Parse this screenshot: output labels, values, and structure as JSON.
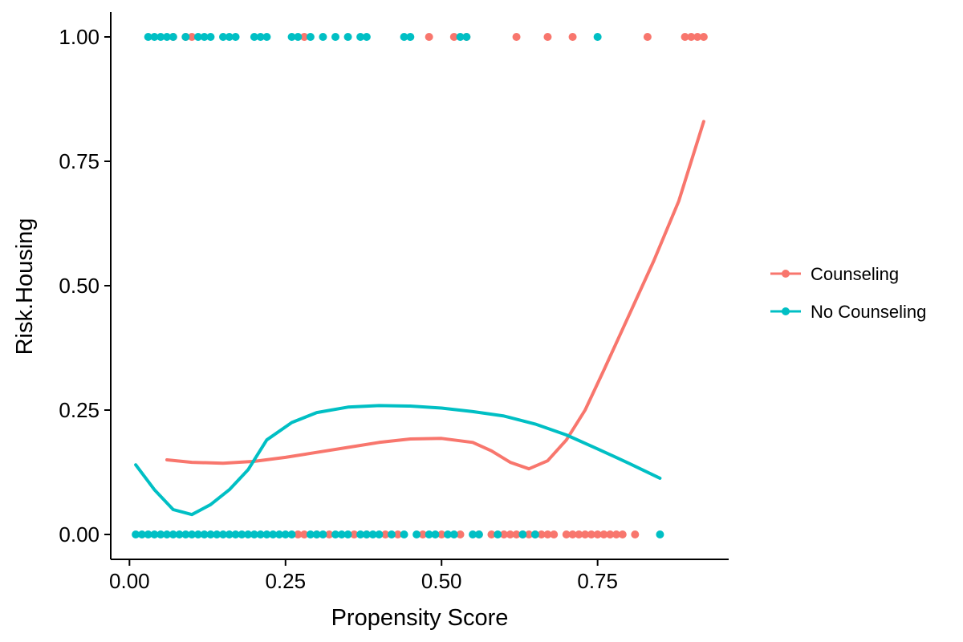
{
  "chart_data": {
    "type": "scatter",
    "xlabel": "Propensity Score",
    "ylabel": "Risk.Housing",
    "xlim": [
      -0.03,
      0.96
    ],
    "ylim": [
      -0.05,
      1.05
    ],
    "xticks": [
      0.0,
      0.25,
      0.5,
      0.75
    ],
    "xtick_labels": [
      "0.00",
      "0.25",
      "0.50",
      "0.75"
    ],
    "yticks": [
      0.0,
      0.25,
      0.5,
      0.75,
      1.0
    ],
    "ytick_labels": [
      "0.00",
      "0.25",
      "0.50",
      "0.75",
      "1.00"
    ],
    "grid": false,
    "legend_position": "right",
    "series": [
      {
        "name": "Counseling",
        "color": "#F8766D",
        "points_y1": [
          0.07,
          0.09,
          0.1,
          0.28,
          0.48,
          0.52,
          0.54,
          0.62,
          0.67,
          0.71,
          0.83,
          0.89,
          0.9,
          0.91,
          0.92
        ],
        "points_y0": [
          0.27,
          0.28,
          0.3,
          0.32,
          0.36,
          0.38,
          0.41,
          0.43,
          0.47,
          0.5,
          0.53,
          0.56,
          0.58,
          0.6,
          0.61,
          0.62,
          0.63,
          0.64,
          0.65,
          0.66,
          0.67,
          0.68,
          0.7,
          0.71,
          0.72,
          0.73,
          0.74,
          0.75,
          0.76,
          0.77,
          0.78,
          0.79,
          0.81
        ],
        "smooth": [
          [
            0.06,
            0.15
          ],
          [
            0.1,
            0.145
          ],
          [
            0.15,
            0.143
          ],
          [
            0.2,
            0.147
          ],
          [
            0.25,
            0.155
          ],
          [
            0.3,
            0.165
          ],
          [
            0.35,
            0.175
          ],
          [
            0.4,
            0.185
          ],
          [
            0.45,
            0.192
          ],
          [
            0.5,
            0.193
          ],
          [
            0.55,
            0.185
          ],
          [
            0.58,
            0.168
          ],
          [
            0.61,
            0.145
          ],
          [
            0.64,
            0.132
          ],
          [
            0.67,
            0.148
          ],
          [
            0.7,
            0.19
          ],
          [
            0.73,
            0.25
          ],
          [
            0.76,
            0.33
          ],
          [
            0.8,
            0.44
          ],
          [
            0.84,
            0.55
          ],
          [
            0.88,
            0.67
          ],
          [
            0.92,
            0.83
          ]
        ]
      },
      {
        "name": "No Counseling",
        "color": "#00BFC4",
        "points_y1": [
          0.03,
          0.04,
          0.05,
          0.06,
          0.07,
          0.09,
          0.11,
          0.12,
          0.13,
          0.15,
          0.16,
          0.17,
          0.2,
          0.21,
          0.22,
          0.26,
          0.27,
          0.29,
          0.31,
          0.33,
          0.35,
          0.37,
          0.38,
          0.44,
          0.45,
          0.53,
          0.54,
          0.75
        ],
        "points_y0": [
          0.01,
          0.02,
          0.03,
          0.04,
          0.05,
          0.06,
          0.07,
          0.08,
          0.09,
          0.1,
          0.11,
          0.12,
          0.13,
          0.14,
          0.15,
          0.16,
          0.17,
          0.18,
          0.19,
          0.2,
          0.21,
          0.22,
          0.23,
          0.24,
          0.25,
          0.26,
          0.29,
          0.3,
          0.31,
          0.33,
          0.34,
          0.35,
          0.37,
          0.38,
          0.39,
          0.4,
          0.42,
          0.44,
          0.46,
          0.48,
          0.49,
          0.51,
          0.52,
          0.55,
          0.56,
          0.59,
          0.63,
          0.65,
          0.85
        ],
        "smooth": [
          [
            0.01,
            0.14
          ],
          [
            0.04,
            0.09
          ],
          [
            0.07,
            0.05
          ],
          [
            0.1,
            0.04
          ],
          [
            0.13,
            0.06
          ],
          [
            0.16,
            0.09
          ],
          [
            0.19,
            0.13
          ],
          [
            0.22,
            0.19
          ],
          [
            0.26,
            0.225
          ],
          [
            0.3,
            0.245
          ],
          [
            0.35,
            0.256
          ],
          [
            0.4,
            0.259
          ],
          [
            0.45,
            0.258
          ],
          [
            0.5,
            0.254
          ],
          [
            0.55,
            0.247
          ],
          [
            0.6,
            0.238
          ],
          [
            0.65,
            0.222
          ],
          [
            0.7,
            0.2
          ],
          [
            0.75,
            0.172
          ],
          [
            0.8,
            0.143
          ],
          [
            0.85,
            0.113
          ]
        ]
      }
    ]
  }
}
